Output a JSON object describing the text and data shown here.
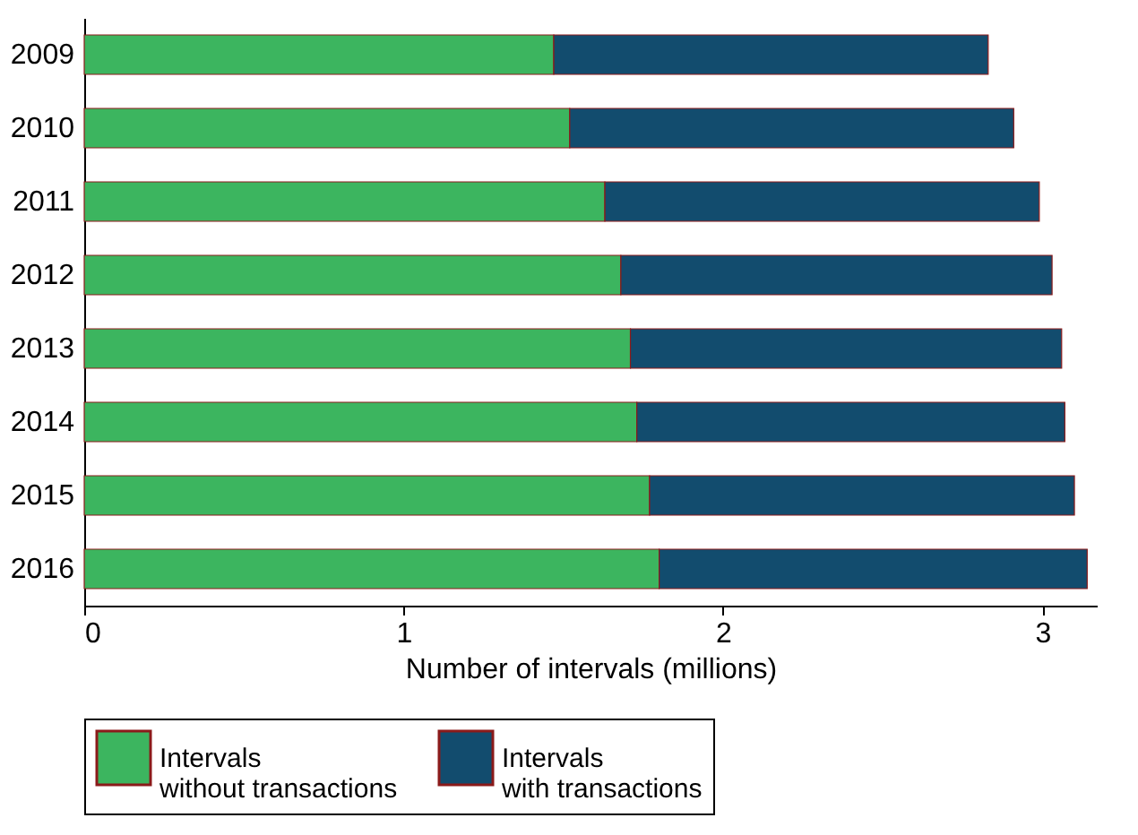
{
  "chart_data": {
    "type": "bar",
    "orientation": "horizontal",
    "stacked": true,
    "xlabel": "Number of intervals (millions)",
    "categories": [
      "2009",
      "2010",
      "2011",
      "2012",
      "2013",
      "2014",
      "2015",
      "2016"
    ],
    "series": [
      {
        "name": "Intervals\nwithout transactions",
        "color": "#3cb55f",
        "values": [
          1.47,
          1.52,
          1.63,
          1.68,
          1.71,
          1.73,
          1.77,
          1.8
        ]
      },
      {
        "name": "Intervals\nwith transactions",
        "color": "#124c6e",
        "values": [
          1.36,
          1.39,
          1.36,
          1.35,
          1.35,
          1.34,
          1.33,
          1.34
        ]
      }
    ],
    "xlim": [
      0,
      3.17
    ],
    "xticks": [
      0,
      1,
      2,
      3
    ],
    "grid": false,
    "legend": "bottom"
  }
}
